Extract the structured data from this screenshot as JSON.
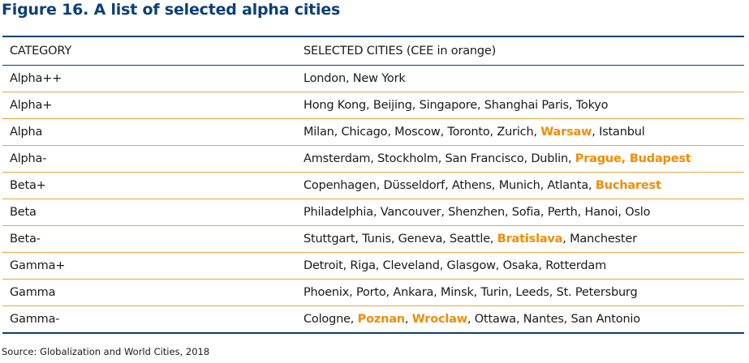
{
  "title": "Figure 16. A list of selected alpha cities",
  "colors": {
    "title_blue": "#0a3f7a",
    "cee_orange": "#f28c00",
    "row_rule_orange": "#f0a33c"
  },
  "table": {
    "headers": [
      "CATEGORY",
      "SELECTED CITIES (CEE in orange)"
    ],
    "rows": [
      {
        "category": "Alpha++",
        "cities": [
          {
            "text": "London, New York",
            "cee": false
          }
        ]
      },
      {
        "category": "Alpha+",
        "cities": [
          {
            "text": "Hong Kong, Beijing, Singapore, Shanghai Paris, Tokyo",
            "cee": false
          }
        ]
      },
      {
        "category": "Alpha",
        "cities": [
          {
            "text": "Milan, Chicago, Moscow, Toronto, Zurich, ",
            "cee": false
          },
          {
            "text": "Warsaw",
            "cee": true
          },
          {
            "text": ", Istanbul",
            "cee": false
          }
        ]
      },
      {
        "category": "Alpha-",
        "cities": [
          {
            "text": "Amsterdam, Stockholm, San Francisco, Dublin, ",
            "cee": false
          },
          {
            "text": "Prague, Budapest",
            "cee": true
          }
        ]
      },
      {
        "category": "Beta+",
        "cities": [
          {
            "text": "Copenhagen, Düsseldorf, Athens, Munich, Atlanta, ",
            "cee": false
          },
          {
            "text": "Bucharest",
            "cee": true
          }
        ]
      },
      {
        "category": "Beta",
        "cities": [
          {
            "text": "Philadelphia, Vancouver, Shenzhen, Sofia, Perth, Hanoi, Oslo",
            "cee": false
          }
        ]
      },
      {
        "category": "Beta-",
        "cities": [
          {
            "text": "Stuttgart, Tunis, Geneva, Seattle, ",
            "cee": false
          },
          {
            "text": "Bratislava",
            "cee": true
          },
          {
            "text": ", Manchester",
            "cee": false
          }
        ]
      },
      {
        "category": "Gamma+",
        "cities": [
          {
            "text": "Detroit, Riga, Cleveland, Glasgow, Osaka, Rotterdam",
            "cee": false
          }
        ]
      },
      {
        "category": "Gamma",
        "cities": [
          {
            "text": "Phoenix, Porto, Ankara, Minsk, Turin, Leeds, St. Petersburg",
            "cee": false
          }
        ]
      },
      {
        "category": "Gamma-",
        "cities": [
          {
            "text": "Cologne, ",
            "cee": false
          },
          {
            "text": "Poznan",
            "cee": true
          },
          {
            "text": ", ",
            "cee": false
          },
          {
            "text": "Wroclaw",
            "cee": true
          },
          {
            "text": ", Ottawa, Nantes, San Antonio",
            "cee": false
          }
        ]
      }
    ]
  },
  "source": "Source: Globalization and World Cities, 2018"
}
